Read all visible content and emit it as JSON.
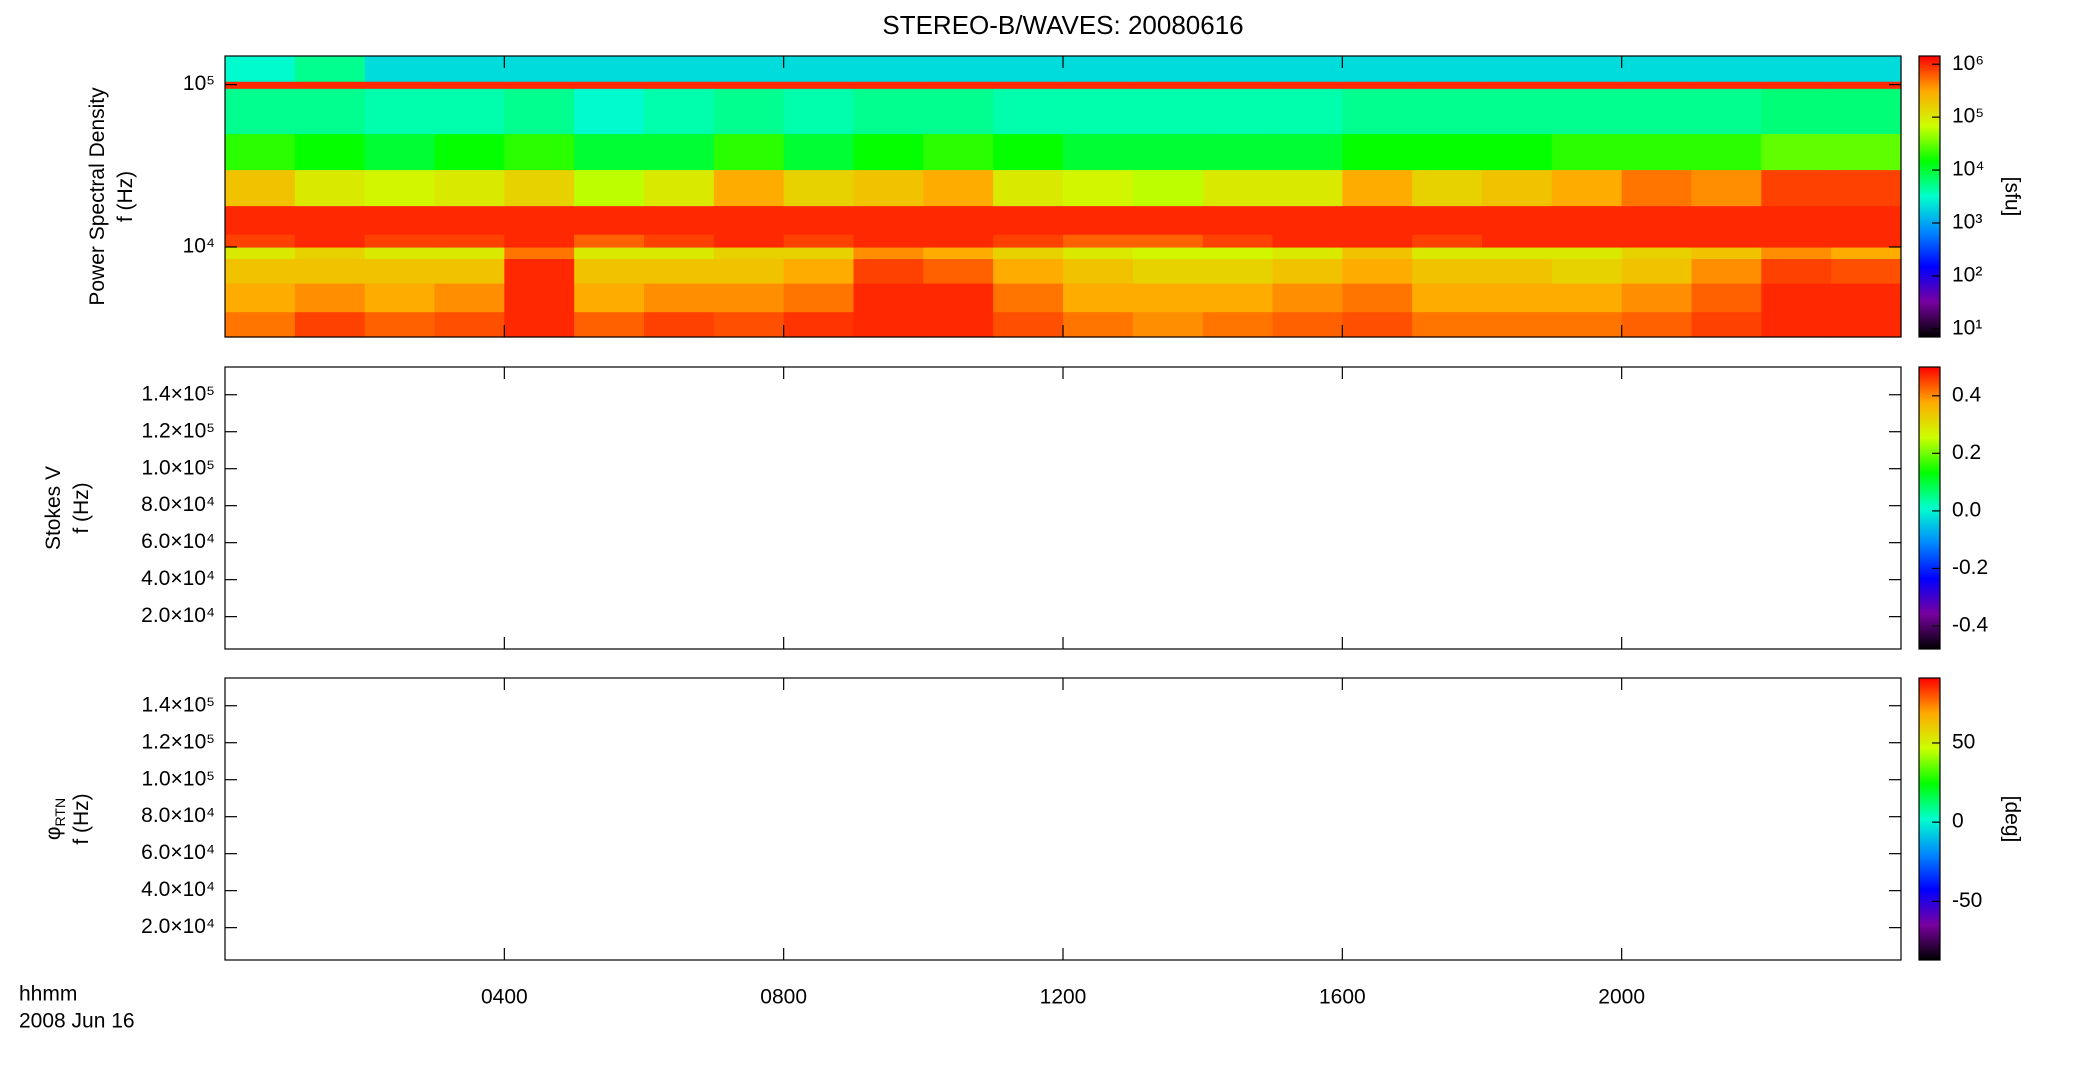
{
  "chart_data": [
    {
      "type": "heatmap",
      "title": "STEREO-B/WAVES: 20080616",
      "ylabel": [
        "Power Spectral Density",
        "f (Hz)"
      ],
      "ylog": true,
      "ylim": [
        2790,
        150000
      ],
      "yticks": [
        {
          "value": 10000,
          "label": "10⁴"
        },
        {
          "value": 100000,
          "label": "10⁵"
        }
      ],
      "xlim": [
        0,
        24
      ],
      "xticks": [
        4,
        8,
        12,
        16,
        20
      ],
      "xbins": [
        0,
        1,
        2,
        3,
        4,
        5,
        6,
        7,
        8,
        9,
        10,
        11,
        12,
        13,
        14,
        15,
        16,
        17,
        18,
        19,
        20,
        21,
        22,
        23,
        24
      ],
      "ybins": [
        2790,
        4000,
        6000,
        8500,
        10000,
        12000,
        18000,
        30000,
        50000,
        95000,
        105000,
        150000
      ],
      "values": [
        [
          500000.0,
          800000.0,
          600000.0,
          700000.0,
          1000000.0,
          600000.0,
          800000.0,
          700000.0,
          900000.0,
          1000000.0,
          1000000.0,
          700000.0,
          500000.0,
          400000.0,
          500000.0,
          600000.0,
          700000.0,
          500000.0,
          500000.0,
          500000.0,
          600000.0,
          800000.0,
          1000000.0,
          1000000.0
        ],
        [
          300000.0,
          400000.0,
          300000.0,
          400000.0,
          1000000.0,
          300000.0,
          400000.0,
          400000.0,
          500000.0,
          1000000.0,
          1000000.0,
          500000.0,
          300000.0,
          300000.0,
          300000.0,
          400000.0,
          500000.0,
          300000.0,
          300000.0,
          300000.0,
          400000.0,
          600000.0,
          1000000.0,
          1000000.0
        ],
        [
          200000.0,
          200000.0,
          200000.0,
          200000.0,
          1000000.0,
          200000.0,
          200000.0,
          200000.0,
          300000.0,
          800000.0,
          600000.0,
          300000.0,
          200000.0,
          150000.0,
          150000.0,
          200000.0,
          300000.0,
          200000.0,
          200000.0,
          150000.0,
          200000.0,
          400000.0,
          800000.0,
          700000.0
        ],
        [
          100000.0,
          150000.0,
          100000.0,
          100000.0,
          500000.0,
          100000.0,
          100000.0,
          150000.0,
          150000.0,
          400000.0,
          300000.0,
          150000.0,
          100000.0,
          80000.0,
          80000.0,
          100000.0,
          200000.0,
          100000.0,
          100000.0,
          100000.0,
          150000.0,
          200000.0,
          400000.0,
          300000.0
        ],
        [
          800000.0,
          1000000.0,
          800000.0,
          800000.0,
          1000000.0,
          600000.0,
          800000.0,
          1000000.0,
          800000.0,
          1000000.0,
          1000000.0,
          800000.0,
          600000.0,
          600000.0,
          800000.0,
          1000000.0,
          1000000.0,
          800000.0,
          1000000.0,
          1000000.0,
          1000000.0,
          1000000.0,
          1000000.0,
          1000000.0
        ],
        [
          1000000.0,
          1000000.0,
          1000000.0,
          1000000.0,
          1000000.0,
          1000000.0,
          1000000.0,
          1000000.0,
          1000000.0,
          1000000.0,
          1000000.0,
          1000000.0,
          1000000.0,
          1000000.0,
          1000000.0,
          1000000.0,
          1000000.0,
          1000000.0,
          1000000.0,
          1000000.0,
          1000000.0,
          1000000.0,
          1000000.0,
          1000000.0
        ],
        [
          200000.0,
          100000.0,
          80000.0,
          100000.0,
          150000.0,
          60000.0,
          100000.0,
          300000.0,
          150000.0,
          200000.0,
          300000.0,
          100000.0,
          80000.0,
          60000.0,
          100000.0,
          100000.0,
          300000.0,
          150000.0,
          200000.0,
          300000.0,
          500000.0,
          400000.0,
          800000.0,
          800000.0
        ],
        [
          20000.0,
          15000.0,
          10000.0,
          15000.0,
          20000.0,
          10000.0,
          10000.0,
          20000.0,
          10000.0,
          15000.0,
          20000.0,
          15000.0,
          10000.0,
          10000.0,
          10000.0,
          10000.0,
          15000.0,
          15000.0,
          15000.0,
          20000.0,
          20000.0,
          20000.0,
          30000.0,
          30000.0
        ],
        [
          5000.0,
          5000.0,
          4000.0,
          4000.0,
          5000.0,
          3000.0,
          4000.0,
          5000.0,
          4000.0,
          5000.0,
          5000.0,
          4000.0,
          4000.0,
          4000.0,
          4000.0,
          4000.0,
          5000.0,
          5000.0,
          5000.0,
          5000.0,
          5000.0,
          5000.0,
          6000.0,
          6000.0
        ],
        [
          1000000.0,
          1000000.0,
          1000000.0,
          1000000.0,
          1000000.0,
          1000000.0,
          1000000.0,
          1000000.0,
          1000000.0,
          1000000.0,
          1000000.0,
          1000000.0,
          1000000.0,
          1000000.0,
          1000000.0,
          1000000.0,
          1000000.0,
          1000000.0,
          1000000.0,
          1000000.0,
          1000000.0,
          1000000.0,
          1000000.0,
          1000000.0
        ],
        [
          3000.0,
          5000.0,
          2000.0,
          2000.0,
          2000.0,
          2000.0,
          2000.0,
          2000.0,
          2000.0,
          2000.0,
          2000.0,
          2000.0,
          2000.0,
          2000.0,
          2000.0,
          2000.0,
          2000.0,
          2000.0,
          2000.0,
          2000.0,
          2000.0,
          2000.0,
          2000.0,
          2000.0
        ]
      ],
      "clog": true,
      "clim": [
        7,
        1430000
      ],
      "cticks": [
        {
          "value": 10,
          "label": "10¹"
        },
        {
          "value": 100,
          "label": "10²"
        },
        {
          "value": 1000,
          "label": "10³"
        },
        {
          "value": 10000,
          "label": "10⁴"
        },
        {
          "value": 100000,
          "label": "10⁵"
        },
        {
          "value": 1000000,
          "label": "10⁶"
        }
      ],
      "clabel": "[sfu]",
      "colormap": [
        "#000000",
        "#7800a0",
        "#0000ff",
        "#0088ff",
        "#00ffcc",
        "#00ff00",
        "#ccff00",
        "#ffaa00",
        "#ff0000"
      ]
    },
    {
      "type": "heatmap",
      "ylabel": [
        "Stokes V",
        "f (Hz)"
      ],
      "ylim": [
        2500,
        155000
      ],
      "yticks": [
        {
          "value": 20000,
          "label": "2.0×10⁴"
        },
        {
          "value": 40000,
          "label": "4.0×10⁴"
        },
        {
          "value": 60000,
          "label": "6.0×10⁴"
        },
        {
          "value": 80000,
          "label": "8.0×10⁴"
        },
        {
          "value": 100000,
          "label": "1.0×10⁵"
        },
        {
          "value": 120000,
          "label": "1.2×10⁵"
        },
        {
          "value": 140000,
          "label": "1.4×10⁵"
        }
      ],
      "xlim": [
        0,
        24
      ],
      "xticks": [
        4,
        8,
        12,
        16,
        20
      ],
      "clim": [
        -0.48,
        0.5
      ],
      "cticks": [
        -0.4,
        -0.2,
        {
          "value": 0,
          "label": "0.0"
        },
        0.2,
        0.4
      ],
      "colormap": [
        "#000000",
        "#7800a0",
        "#0000ff",
        "#0088ff",
        "#00ffcc",
        "#00ff00",
        "#ccff00",
        "#ffaa00",
        "#ff0000"
      ]
    },
    {
      "type": "heatmap",
      "ylabel": [
        "φ",
        "f (Hz)"
      ],
      "ylabel_sub": "RTN",
      "ylim": [
        2500,
        155000
      ],
      "yticks": [
        {
          "value": 20000,
          "label": "2.0×10⁴"
        },
        {
          "value": 40000,
          "label": "4.0×10⁴"
        },
        {
          "value": 60000,
          "label": "6.0×10⁴"
        },
        {
          "value": 80000,
          "label": "8.0×10⁴"
        },
        {
          "value": 100000,
          "label": "1.0×10⁵"
        },
        {
          "value": 120000,
          "label": "1.2×10⁵"
        },
        {
          "value": 140000,
          "label": "1.4×10⁵"
        }
      ],
      "xlim": [
        0,
        24
      ],
      "xticks": [
        {
          "value": 4,
          "label": "0400"
        },
        {
          "value": 8,
          "label": "0800"
        },
        {
          "value": 12,
          "label": "1200"
        },
        {
          "value": 16,
          "label": "1600"
        },
        {
          "value": 20,
          "label": "2000"
        }
      ],
      "xlabel": [
        "hhmm",
        "2008 Jun 16"
      ],
      "clim": [
        -87,
        91
      ],
      "cticks": [
        -50,
        0,
        50
      ],
      "clabel": "[deg]",
      "colormap": [
        "#000000",
        "#7800a0",
        "#0000ff",
        "#0088ff",
        "#00ffcc",
        "#00ff00",
        "#ccff00",
        "#ffaa00",
        "#ff0000"
      ]
    }
  ]
}
